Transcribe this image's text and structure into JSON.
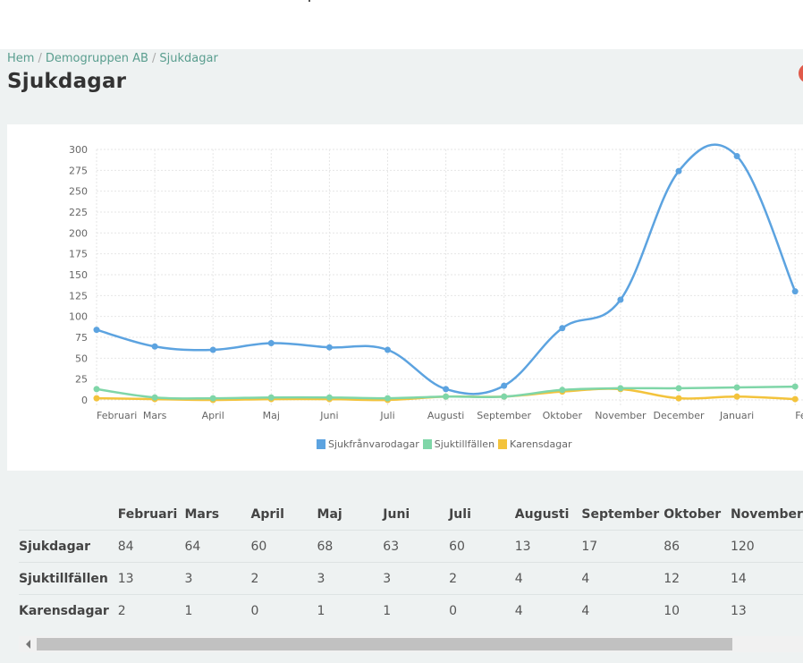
{
  "breadcrumb": {
    "items": [
      "Hem",
      "Demogruppen AB",
      "Sjukdagar"
    ],
    "separator": "/"
  },
  "page_title": "Sjukdagar",
  "chart_data": {
    "type": "line",
    "categories": [
      "Februari",
      "Mars",
      "April",
      "Maj",
      "Juni",
      "Juli",
      "Augusti",
      "September",
      "Oktober",
      "November",
      "December",
      "Januari",
      "Februari"
    ],
    "x_tick_labels": [
      "Februari",
      "Mars",
      "April",
      "Maj",
      "Juni",
      "Juli",
      "Augusti",
      "September",
      "Oktober",
      "November",
      "December",
      "Januari",
      "Fe"
    ],
    "y_ticks": [
      0,
      25,
      50,
      75,
      100,
      125,
      150,
      175,
      200,
      225,
      250,
      275,
      300
    ],
    "ylim": [
      0,
      300
    ],
    "grid": true,
    "legend_position": "bottom",
    "series": [
      {
        "name": "Sjukfrånvarodagar",
        "color": "#5ca3e0",
        "values": [
          84,
          64,
          60,
          68,
          63,
          60,
          13,
          17,
          86,
          120,
          274,
          292,
          130
        ]
      },
      {
        "name": "Sjuktillfällen",
        "color": "#7fd6a8",
        "values": [
          13,
          3,
          2,
          3,
          3,
          2,
          4,
          4,
          12,
          14,
          14,
          15,
          16
        ]
      },
      {
        "name": "Karensdagar",
        "color": "#f3c33c",
        "values": [
          2,
          1,
          0,
          1,
          1,
          0,
          4,
          4,
          10,
          13,
          2,
          4,
          1
        ]
      }
    ]
  },
  "table": {
    "headers": [
      "",
      "Februari",
      "Mars",
      "April",
      "Maj",
      "Juni",
      "Juli",
      "Augusti",
      "September",
      "Oktober",
      "November"
    ],
    "rows": [
      {
        "label": "Sjukdagar",
        "cells": [
          "84",
          "64",
          "60",
          "68",
          "63",
          "60",
          "13",
          "17",
          "86",
          "120"
        ]
      },
      {
        "label": "Sjuktillfällen",
        "cells": [
          "13",
          "3",
          "2",
          "3",
          "3",
          "2",
          "4",
          "4",
          "12",
          "14"
        ]
      },
      {
        "label": "Karensdagar",
        "cells": [
          "2",
          "1",
          "0",
          "1",
          "1",
          "0",
          "4",
          "4",
          "10",
          "13"
        ]
      }
    ]
  }
}
